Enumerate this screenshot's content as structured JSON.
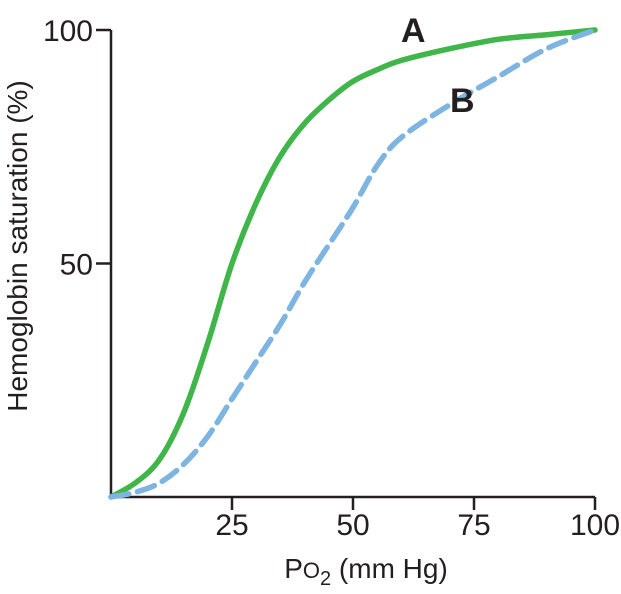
{
  "figure": {
    "background": "#ffffff",
    "xlabel_parts": {
      "p": "P",
      "o": "O",
      "sub": "2",
      "rest": " (mm Hg)"
    }
  },
  "chart_data": {
    "type": "line",
    "title": "",
    "xlabel": "Po2 (mm Hg)",
    "ylabel": "Hemoglobin saturation (%)",
    "xlim": [
      0,
      100
    ],
    "ylim": [
      0,
      100
    ],
    "xticks": [
      25,
      50,
      75,
      100
    ],
    "yticks": [
      50,
      100
    ],
    "grid": false,
    "legend": "inline letter labels next to curves",
    "axis_color": "#231f20",
    "series": [
      {
        "name": "A",
        "line_style": "solid",
        "color": "#3fb54a",
        "x": [
          0,
          5,
          10,
          15,
          20,
          25,
          30,
          35,
          40,
          45,
          50,
          55,
          60,
          70,
          80,
          90,
          100
        ],
        "y": [
          0,
          3,
          8,
          18,
          33,
          50,
          63,
          73,
          80,
          85,
          89,
          91.5,
          93.5,
          96,
          98,
          99,
          100
        ]
      },
      {
        "name": "B",
        "line_style": "dashed",
        "color": "#7db4e2",
        "x": [
          0,
          5,
          10,
          15,
          20,
          25,
          30,
          35,
          40,
          45,
          50,
          55,
          60,
          70,
          80,
          90,
          100
        ],
        "y": [
          0,
          1,
          3,
          7,
          13,
          21,
          29,
          37,
          46,
          54,
          62,
          71,
          77,
          84,
          90,
          96,
          100
        ]
      }
    ]
  }
}
